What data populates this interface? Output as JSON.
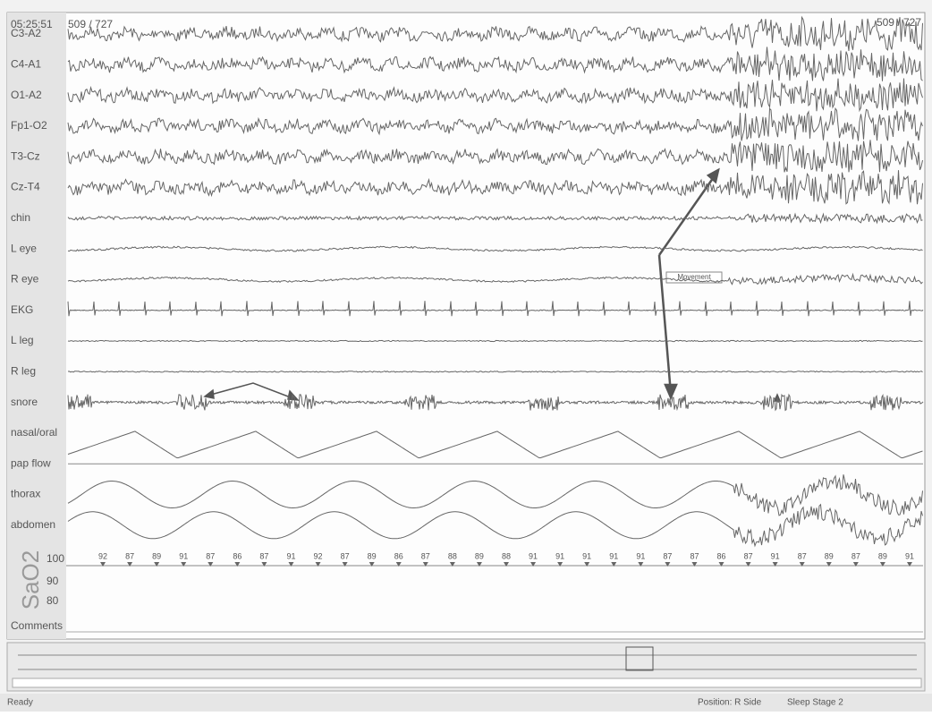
{
  "header": {
    "time": "05:25:51",
    "epoch_left": "509 / 727",
    "epoch_right": "509 / 727"
  },
  "channels": [
    {
      "label": "C3-A2"
    },
    {
      "label": "C4-A1"
    },
    {
      "label": "O1-A2"
    },
    {
      "label": "Fp1-O2"
    },
    {
      "label": "T3-Cz"
    },
    {
      "label": "Cz-T4"
    },
    {
      "label": "chin"
    },
    {
      "label": "L eye"
    },
    {
      "label": "R eye"
    },
    {
      "label": "EKG"
    },
    {
      "label": "L leg"
    },
    {
      "label": "R leg"
    },
    {
      "label": "snore"
    },
    {
      "label": "nasal/oral"
    },
    {
      "label": "pap flow"
    },
    {
      "label": "thorax"
    },
    {
      "label": "abdomen"
    }
  ],
  "spo2": {
    "label": "SaO2",
    "scale": [
      100,
      90,
      80
    ],
    "readings": [
      92,
      87,
      89,
      91,
      87,
      86,
      87,
      91,
      92,
      87,
      89,
      86,
      87,
      88,
      89,
      88,
      91,
      91,
      91,
      91,
      91,
      87,
      87,
      86,
      87,
      91,
      87,
      89,
      87,
      89,
      91
    ]
  },
  "comments_label": "Comments",
  "annotation": "Movement",
  "status": {
    "left": "Ready",
    "position": "Position: R Side",
    "stage": "Sleep Stage 2"
  }
}
